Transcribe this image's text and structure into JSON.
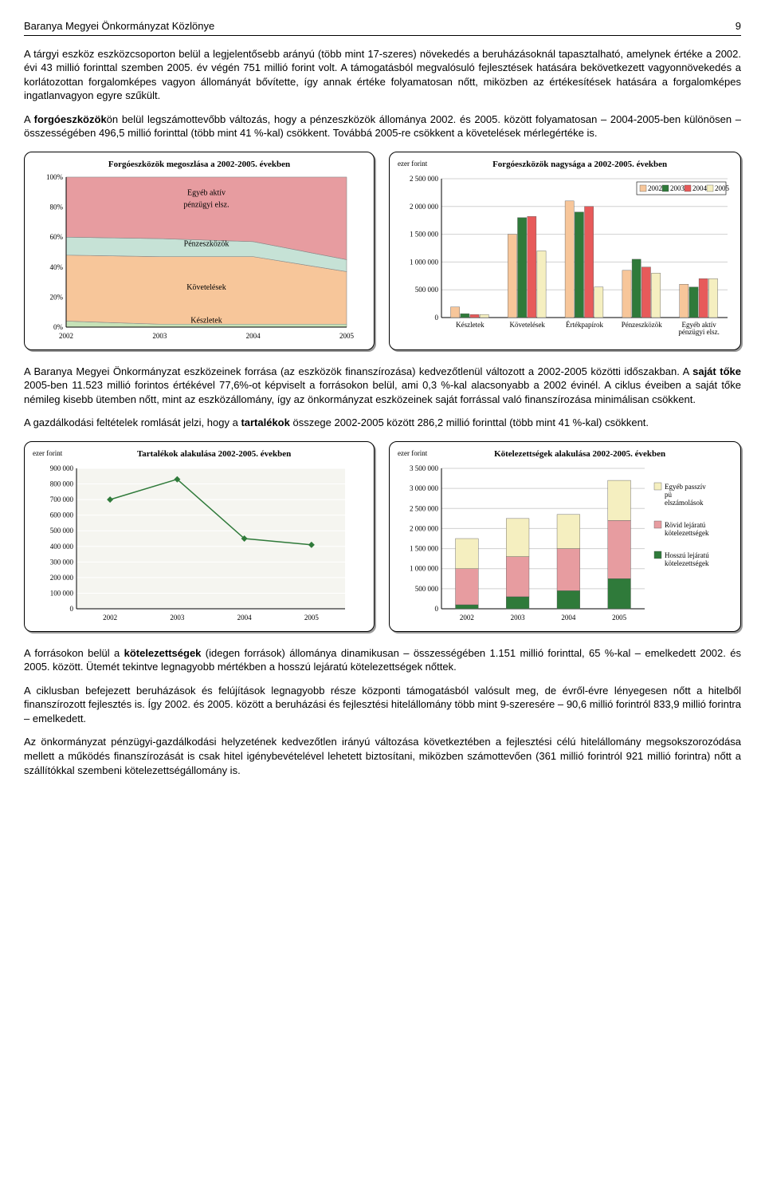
{
  "header": {
    "title": "Baranya Megyei Önkormányzat Közlönye",
    "page": "9"
  },
  "para1": "A tárgyi eszköz eszközcsoporton belül a legjelentősebb arányú (több mint 17-szeres) növekedés a beruházásoknál tapasztalható, amelynek értéke a 2002. évi 43 millió forinttal szemben 2005. év végén 751 millió forint volt. A támogatásból megvalósuló fejlesztések hatására bekövetkezett vagyonnövekedés a korlátozottan forgalomképes vagyon állományát bővítette, így annak értéke folyamatosan nőtt, miközben az értékesítések hatására a forgalomképes ingatlanvagyon egyre szűkült.",
  "para2_pre": "A ",
  "para2_b1": "forgóeszközök",
  "para2_post": "ön belül legszámottevőbb változás, hogy a pénzeszközök állománya 2002. és 2005. között folyamatosan – 2004-2005-ben különösen – összességében 496,5 millió forinttal (több mint 41 %-kal) csökkent. Továbbá 2005-re csökkent a követelések mérlegértéke is.",
  "chartA": {
    "title": "Forgóeszközök megoszlása a 2002-2005. években",
    "type": "area-100",
    "years": [
      "2002",
      "2003",
      "2004",
      "2005"
    ],
    "yticks": [
      "0%",
      "20%",
      "40%",
      "60%",
      "80%",
      "100%"
    ],
    "shares": {
      "keszletek": [
        4,
        2,
        2,
        2
      ],
      "kovetelesek": [
        44,
        45,
        45,
        35
      ],
      "penzeszkozok": [
        12,
        12,
        10,
        8
      ],
      "egyeb": [
        40,
        41,
        43,
        55
      ]
    },
    "labels": {
      "keszletek": "Készletek",
      "kovetelesek": "Követelések",
      "penzeszkozok": "Pénzeszközök",
      "egyeb_l1": "Egyéb aktív",
      "egyeb_l2": "pénzügyi elsz."
    },
    "colors": {
      "keszletek": "#c6e2b7",
      "kovetelesek": "#f7c69a",
      "penzeszkozok": "#c6e2d6",
      "egyeb": "#e79ca0"
    },
    "grid": "#d0d0d0",
    "axis": "#000000"
  },
  "chartB": {
    "title": "Forgóeszközök nagysága a 2002-2005. években",
    "unit": "ezer forint",
    "type": "grouped-bar",
    "categories": [
      "Készletek",
      "Követelések",
      "Értékpapírok",
      "Pénzeszközök",
      "Egyéb aktív\npénzügyi elsz."
    ],
    "years": [
      "2002",
      "2003",
      "2004",
      "2005"
    ],
    "ymax": 2500000,
    "ystep": 500000,
    "values": {
      "Készletek": [
        190000,
        70000,
        55000,
        55000
      ],
      "Követelések": [
        1500000,
        1800000,
        1820000,
        1200000
      ],
      "Értékpapírok": [
        2100000,
        1900000,
        2000000,
        550000
      ],
      "Pénzeszközök": [
        850000,
        1050000,
        910000,
        800000
      ],
      "Egyéb aktív\npénzügyi elsz.": [
        600000,
        550000,
        700000,
        700000
      ]
    },
    "colors": [
      "#f7c69a",
      "#2f7a3a",
      "#e75a5a",
      "#f5efc0"
    ],
    "grid": "#d0d0d0",
    "axis": "#000000",
    "legend": [
      "2002",
      "2003",
      "2004",
      "2005"
    ]
  },
  "para3_pre": "A Baranya Megyei Önkormányzat eszközeinek forrása (az eszközök finanszírozása) kedvezőtlenül változott a 2002-2005 közötti időszakban. A ",
  "para3_b": "saját tőke",
  "para3_post": " 2005-ben 11.523 millió forintos értékével 77,6%-ot képviselt a forrásokon belül, ami 0,3 %-kal alacsonyabb a 2002 évinél. A ciklus éveiben a saját tőke némileg kisebb ütemben nőtt, mint az eszközállomány, így az önkormányzat eszközeinek saját forrással való finanszírozása minimálisan csökkent.",
  "para4_pre": "A gazdálkodási feltételek romlását jelzi, hogy a ",
  "para4_b": "tartalékok",
  "para4_post": " összege 2002-2005 között 286,2 millió forinttal (több mint 41 %-kal) csökkent.",
  "chartC": {
    "title": "Tartalékok alakulása 2002-2005. években",
    "unit": "ezer forint",
    "type": "line",
    "years": [
      "2002",
      "2003",
      "2004",
      "2005"
    ],
    "values": [
      700000,
      830000,
      450000,
      410000
    ],
    "ymax": 900000,
    "ystep": 100000,
    "line_color": "#2f7a3a",
    "marker": "diamond",
    "grid": "#d0d0d0",
    "bg": "#f5f5f0"
  },
  "chartD": {
    "title": "Kötelezettségek alakulása 2002-2005. években",
    "unit": "ezer forint",
    "type": "stacked-bar",
    "years": [
      "2002",
      "2003",
      "2004",
      "2005"
    ],
    "ymax": 3500000,
    "ystep": 500000,
    "series": [
      {
        "name": "Hosszú lejáratú\nkötelezettségek",
        "color": "#2f7a3a",
        "values": [
          100000,
          300000,
          450000,
          750000
        ]
      },
      {
        "name": "Rövid lejáratú\nkötelezettségek",
        "color": "#e79ca0",
        "values": [
          900000,
          1000000,
          1050000,
          1450000
        ]
      },
      {
        "name": "Egyéb passzív\npü\nelszámolások",
        "color": "#f5efc0",
        "values": [
          750000,
          950000,
          850000,
          1000000
        ]
      }
    ],
    "grid": "#d0d0d0"
  },
  "para5_pre": "A forrásokon belül a ",
  "para5_b": "kötelezettségek",
  "para5_post": " (idegen források) állománya dinamikusan – összességében 1.151 millió forinttal, 65 %-kal – emelkedett 2002. és 2005. között. Ütemét tekintve legnagyobb mértékben a hosszú lejáratú kötelezettségek nőttek.",
  "para6": "A ciklusban befejezett beruházások és felújítások legnagyobb része központi támogatásból valósult meg, de évről-évre lényegesen nőtt a hitelből finanszírozott fejlesztés is. Így 2002. és 2005. között a beruházási és fejlesztési hitelállomány több mint 9-szeresére – 90,6 millió forintról 833,9 millió forintra – emelkedett.",
  "para7": "Az önkormányzat pénzügyi-gazdálkodási helyzetének kedvezőtlen irányú változása következtében a fejlesztési célú hitelállomány megsokszorozódása mellett a működés finanszírozását is csak hitel igénybevételével lehetett biztosítani, miközben számottevően (361 millió forintról 921 millió forintra) nőtt a szállítókkal szembeni kötelezettségállomány is."
}
